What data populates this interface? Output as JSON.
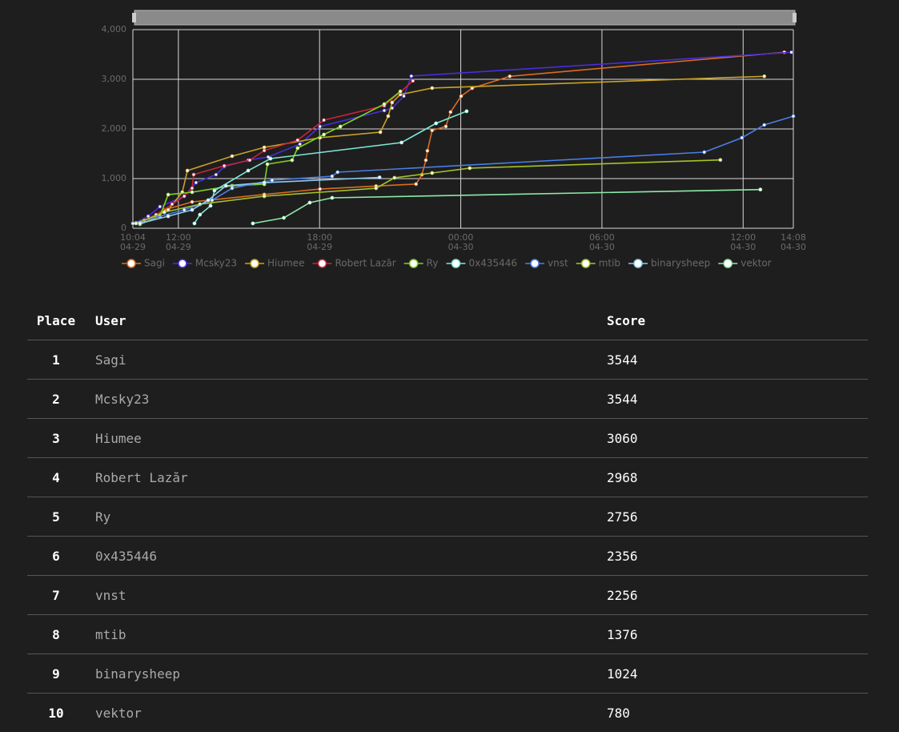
{
  "chart_data": {
    "type": "line",
    "xlim": [
      "04-29 10:04",
      "04-30 14:08"
    ],
    "xticks": [
      {
        "value": "04-29 10:04",
        "label": [
          "10:04",
          "04-29"
        ]
      },
      {
        "value": "04-29 12:00",
        "label": [
          "12:00",
          "04-29"
        ]
      },
      {
        "value": "04-29 18:00",
        "label": [
          "18:00",
          "04-29"
        ]
      },
      {
        "value": "04-30 00:00",
        "label": [
          "00:00",
          "04-30"
        ]
      },
      {
        "value": "04-30 06:00",
        "label": [
          "06:00",
          "04-30"
        ]
      },
      {
        "value": "04-30 12:00",
        "label": [
          "12:00",
          "04-30"
        ]
      },
      {
        "value": "04-30 14:08",
        "label": [
          "14:08",
          "04-30"
        ]
      }
    ],
    "ylim": [
      0,
      4000
    ],
    "yticks": [
      0,
      {
        "value": 1000,
        "label": "1,000"
      },
      {
        "value": 2000,
        "label": "2,000"
      },
      {
        "value": 3000,
        "label": "3,000"
      },
      {
        "value": 4000,
        "label": "4,000"
      }
    ],
    "grid": true,
    "legend": "bottom",
    "series": [
      {
        "name": "Sagi",
        "color": "#dd6b20",
        "x": [
          "04-29 10:04",
          "04-29 11:03",
          "04-29 11:24",
          "04-29 12:35",
          "04-29 15:39",
          "04-29 18:01",
          "04-29 20:24",
          "04-29 22:06",
          "04-29 22:21",
          "04-29 22:31",
          "04-29 22:35",
          "04-29 22:47",
          "04-29 23:22",
          "04-29 23:34",
          "04-30 00:01",
          "04-30 00:29",
          "04-30 02:05",
          "04-30 13:45"
        ],
        "values": [
          100,
          240,
          370,
          530,
          680,
          790,
          850,
          890,
          1080,
          1370,
          1560,
          1970,
          2050,
          2340,
          2660,
          2820,
          3060,
          3544
        ]
      },
      {
        "name": "Mcsky23",
        "color": "#4a2de0",
        "x": [
          "04-29 10:12",
          "04-29 10:43",
          "04-29 11:13",
          "04-29 12:15",
          "04-29 12:45",
          "04-29 13:36",
          "04-29 13:57",
          "04-29 14:58",
          "04-29 15:49",
          "04-29 17:10",
          "04-29 18:01",
          "04-29 20:45",
          "04-29 21:05",
          "04-29 21:35",
          "04-29 21:54",
          "04-30 14:03"
        ],
        "values": [
          113,
          242,
          435,
          645,
          919,
          1080,
          1242,
          1371,
          1435,
          1694,
          2048,
          2371,
          2419,
          2661,
          3065,
          3544
        ]
      },
      {
        "name": "Hiumee",
        "color": "#c9a227",
        "x": [
          "04-29 10:22",
          "04-29 11:34",
          "04-29 12:10",
          "04-29 12:23",
          "04-29 14:17",
          "04-29 15:39",
          "04-29 18:01",
          "04-29 20:35",
          "04-29 20:55",
          "04-29 21:05",
          "04-29 21:26",
          "04-29 22:47",
          "04-30 12:54"
        ],
        "values": [
          113,
          371,
          726,
          1161,
          1452,
          1629,
          1823,
          1935,
          2258,
          2532,
          2694,
          2823,
          3060
        ]
      },
      {
        "name": "Robert Lazăr",
        "color": "#c8243c",
        "x": [
          "04-29 10:33",
          "04-29 11:03",
          "04-29 11:44",
          "04-29 12:15",
          "04-29 12:35",
          "04-29 12:39",
          "04-29 13:57",
          "04-29 15:02",
          "04-29 15:39",
          "04-29 17:04",
          "04-29 18:11",
          "04-29 20:45",
          "04-29 21:26",
          "04-29 21:58"
        ],
        "values": [
          161,
          274,
          484,
          645,
          806,
          1081,
          1258,
          1371,
          1565,
          1774,
          2177,
          2468,
          2742,
          2968
        ]
      },
      {
        "name": "Ry",
        "color": "#7ed321",
        "x": [
          "04-29 10:22",
          "04-29 11:13",
          "04-29 11:34",
          "04-29 12:35",
          "04-29 14:17",
          "04-29 15:39",
          "04-29 15:47",
          "04-29 16:50",
          "04-29 17:04",
          "04-29 18:11",
          "04-29 18:53",
          "04-29 20:45",
          "04-29 21:26"
        ],
        "values": [
          81,
          242,
          677,
          726,
          855,
          887,
          1290,
          1371,
          1613,
          1887,
          2048,
          2500,
          2756
        ]
      },
      {
        "name": "0x435446",
        "color": "#7fe8d5",
        "x": [
          "04-29 12:41",
          "04-29 12:55",
          "04-29 13:22",
          "04-29 13:32",
          "04-29 14:58",
          "04-29 15:55",
          "04-29 21:29",
          "04-29 22:57",
          "04-30 00:15"
        ],
        "values": [
          97,
          274,
          452,
          758,
          1161,
          1403,
          1726,
          2113,
          2356
        ]
      },
      {
        "name": "vnst",
        "color": "#4a7de8",
        "x": [
          "04-29 10:04",
          "04-29 12:15",
          "04-29 13:26",
          "04-29 14:17",
          "04-29 15:59",
          "04-29 18:32",
          "04-29 18:46",
          "04-30 10:21",
          "04-30 11:57",
          "04-30 12:54",
          "04-30 14:08"
        ],
        "values": [
          97,
          371,
          565,
          806,
          968,
          1048,
          1129,
          1532,
          1823,
          2081,
          2256
        ]
      },
      {
        "name": "mtib",
        "color": "#a3c428",
        "x": [
          "04-29 10:12",
          "04-29 11:24",
          "04-29 12:55",
          "04-29 15:39",
          "04-29 20:24",
          "04-29 21:11",
          "04-29 22:47",
          "04-30 00:23",
          "04-30 11:02"
        ],
        "values": [
          97,
          323,
          484,
          645,
          806,
          1016,
          1113,
          1210,
          1376
        ]
      },
      {
        "name": "binarysheep",
        "color": "#8ec9f0",
        "x": [
          "04-29 10:22",
          "04-29 11:34",
          "04-29 12:35",
          "04-29 13:16",
          "04-29 14:01",
          "04-29 15:39",
          "04-29 20:33"
        ],
        "values": [
          97,
          242,
          371,
          565,
          855,
          919,
          1024
        ]
      },
      {
        "name": "vektor",
        "color": "#8ee8a8",
        "x": [
          "04-29 15:10",
          "04-29 16:29",
          "04-29 17:35",
          "04-29 18:32",
          "04-30 12:44"
        ],
        "values": [
          97,
          210,
          516,
          613,
          780
        ]
      }
    ]
  },
  "table": {
    "header": [
      "Place",
      "User",
      "Score"
    ],
    "rows": [
      [
        1,
        "Sagi",
        3544
      ],
      [
        2,
        "Mcsky23",
        3544
      ],
      [
        3,
        "Hiumee",
        3060
      ],
      [
        4,
        "Robert Lazăr",
        2968
      ],
      [
        5,
        "Ry",
        2756
      ],
      [
        6,
        "0x435446",
        2356
      ],
      [
        7,
        "vnst",
        2256
      ],
      [
        8,
        "mtib",
        1376
      ],
      [
        9,
        "binarysheep",
        1024
      ],
      [
        10,
        "vektor",
        780
      ]
    ]
  }
}
